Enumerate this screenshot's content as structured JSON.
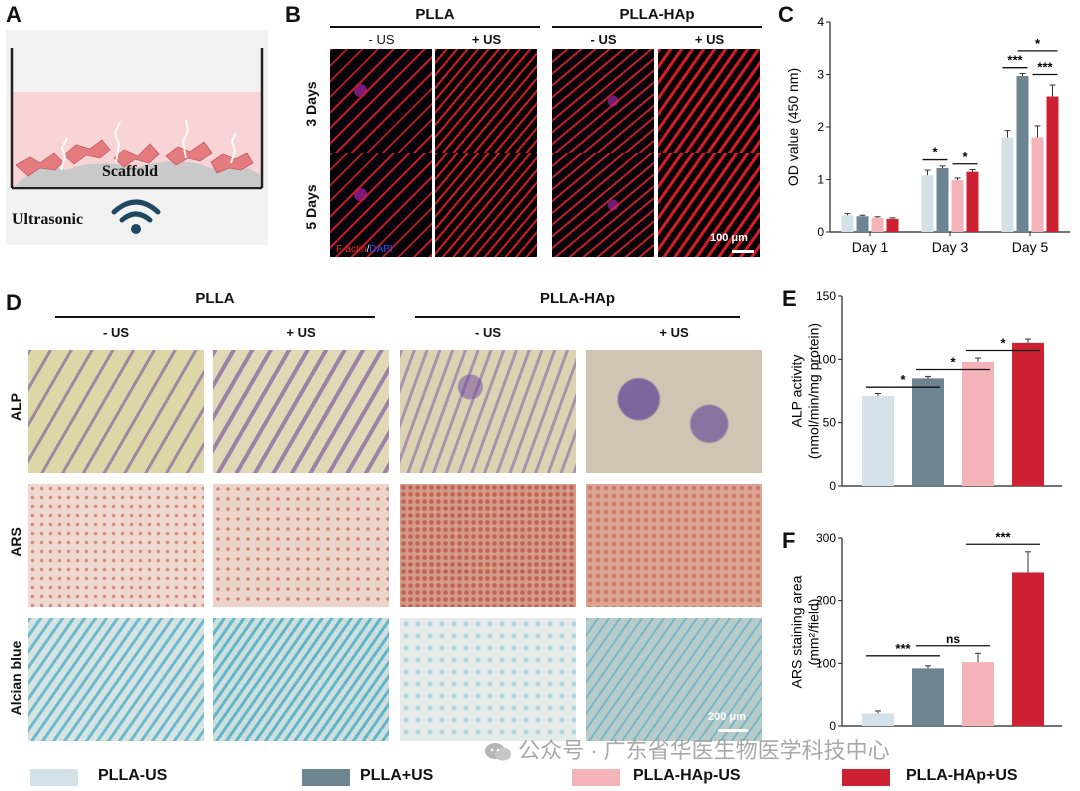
{
  "panels": {
    "A": "A",
    "B": "B",
    "C": "C",
    "D": "D",
    "E": "E",
    "F": "F"
  },
  "panel_a": {
    "scaffold_label": "Scaffold",
    "ultrasonic_label": "Ultrasonic"
  },
  "panel_b": {
    "groups": [
      "PLLA",
      "PLLA-HAp"
    ],
    "conditions": [
      "- US",
      "+ US",
      "- US",
      "+ US"
    ],
    "rows": [
      "3 Days",
      "5 Days"
    ],
    "stain_red": "F-actin",
    "stain_sep": "/",
    "stain_blue": "DAPI",
    "scale_bar": "100 μm"
  },
  "panel_d": {
    "groups": [
      "PLLA",
      "PLLA-HAp"
    ],
    "conditions": [
      "- US",
      "+ US",
      "- US",
      "+ US"
    ],
    "rows": [
      "ALP",
      "ARS",
      "Alcian blue"
    ],
    "scale_bar": "200 μm"
  },
  "colors": {
    "PLLA-US": "#d4e1e9",
    "PLLA+US": "#6d8590",
    "PLLA-HAp-US": "#f4b3b8",
    "PLLA-HAp+US": "#cc2133"
  },
  "legend": [
    "PLLA-US",
    "PLLA+US",
    "PLLA-HAp-US",
    "PLLA-HAp+US"
  ],
  "watermark": "公众号 · 广东省华医生物医学科技中心",
  "chart_data": [
    {
      "id": "C",
      "type": "bar",
      "categories": [
        "Day 1",
        "Day 3",
        "Day 5"
      ],
      "series": [
        {
          "name": "PLLA-US",
          "values": [
            0.32,
            1.08,
            1.8
          ],
          "errors": [
            0.03,
            0.1,
            0.13
          ]
        },
        {
          "name": "PLLA+US",
          "values": [
            0.3,
            1.22,
            2.97
          ],
          "errors": [
            0.02,
            0.04,
            0.05
          ]
        },
        {
          "name": "PLLA-HAp-US",
          "values": [
            0.27,
            0.99,
            1.8
          ],
          "errors": [
            0.02,
            0.04,
            0.22
          ]
        },
        {
          "name": "PLLA-HAp+US",
          "values": [
            0.25,
            1.15,
            2.58
          ],
          "errors": [
            0.02,
            0.04,
            0.22
          ]
        }
      ],
      "ylabel": "OD value (450 nm)",
      "ylim": [
        0,
        4
      ],
      "yticks": [
        0,
        1,
        2,
        3,
        4
      ],
      "significance": [
        {
          "category": "Day 3",
          "from": 0,
          "to": 1,
          "label": "*"
        },
        {
          "category": "Day 3",
          "from": 2,
          "to": 3,
          "label": "*"
        },
        {
          "category": "Day 5",
          "from": 0,
          "to": 1,
          "label": "***"
        },
        {
          "category": "Day 5",
          "from": 2,
          "to": 3,
          "label": "***"
        },
        {
          "category": "Day 5",
          "from": 1,
          "to": 3,
          "label": "*"
        }
      ]
    },
    {
      "id": "E",
      "type": "bar",
      "categories": [
        "PLLA-US",
        "PLLA+US",
        "PLLA-HAp-US",
        "PLLA-HAp+US"
      ],
      "values": [
        71,
        85,
        98,
        113
      ],
      "errors": [
        2,
        1.5,
        3,
        3
      ],
      "ylabel": "ALP activity (nmol/min/mg protein)",
      "ylim": [
        0,
        150
      ],
      "yticks": [
        0,
        50,
        100,
        150
      ],
      "significance": [
        {
          "from": 0,
          "to": 1,
          "label": "*"
        },
        {
          "from": 1,
          "to": 2,
          "label": "*"
        },
        {
          "from": 2,
          "to": 3,
          "label": "*"
        }
      ]
    },
    {
      "id": "F",
      "type": "bar",
      "categories": [
        "PLLA-US",
        "PLLA+US",
        "PLLA-HAp-US",
        "PLLA-HAp+US"
      ],
      "values": [
        20,
        92,
        102,
        245
      ],
      "errors": [
        4,
        4,
        14,
        33
      ],
      "ylabel": "ARS staining area (mm²/field)",
      "ylim": [
        0,
        300
      ],
      "yticks": [
        0,
        100,
        200,
        300
      ],
      "significance": [
        {
          "from": 0,
          "to": 1,
          "label": "***"
        },
        {
          "from": 1,
          "to": 2,
          "label": "ns"
        },
        {
          "from": 2,
          "to": 3,
          "label": "***"
        }
      ]
    }
  ]
}
